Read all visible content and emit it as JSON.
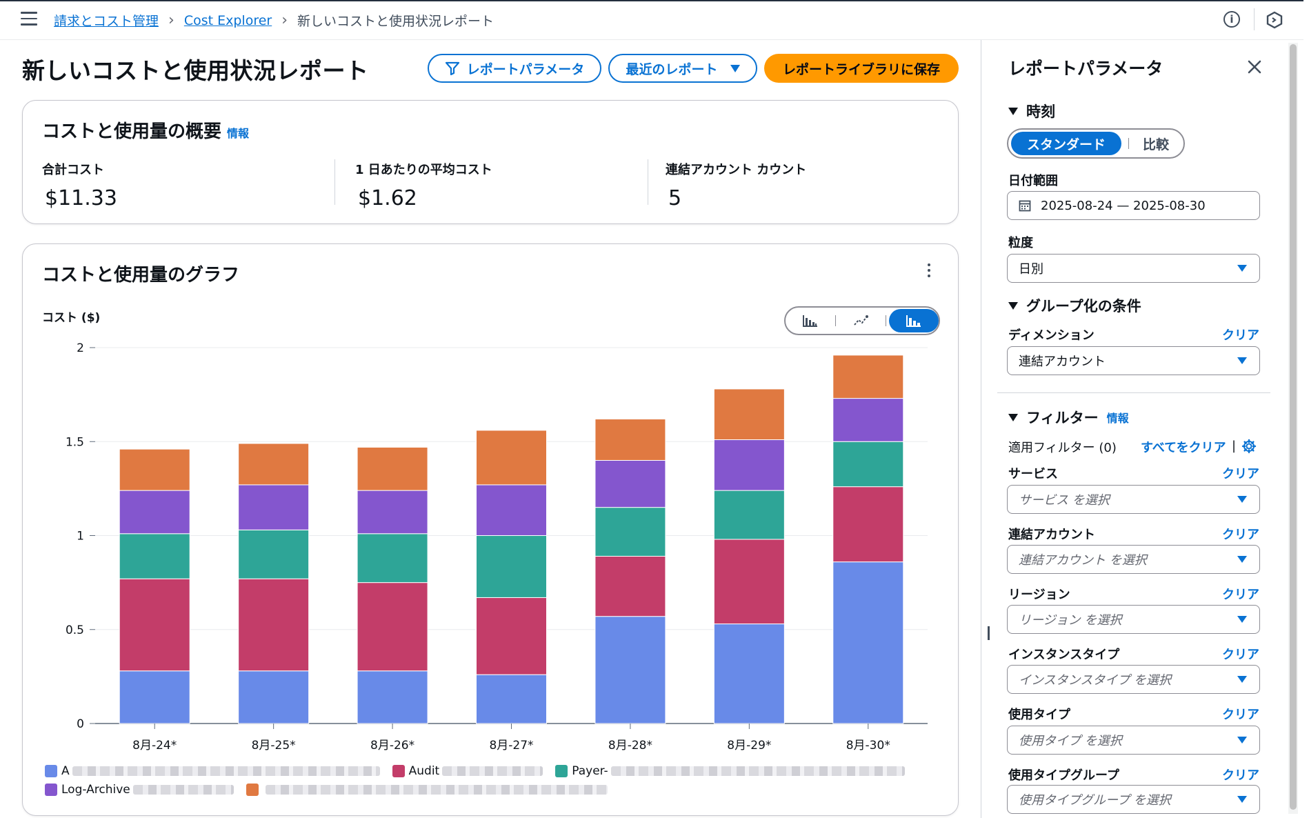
{
  "breadcrumb": {
    "items": [
      "請求とコスト管理",
      "Cost Explorer"
    ],
    "current": "新しいコストと使用状況レポート"
  },
  "header": {
    "title": "新しいコストと使用状況レポート",
    "btn_params": "レポートパラメータ",
    "btn_recent": "最近のレポート",
    "btn_save": "レポートライブラリに保存"
  },
  "summary": {
    "title": "コストと使用量の概要",
    "info": "情報",
    "total_label": "合計コスト",
    "total_value": "$11.33",
    "avg_label": "1 日あたりの平均コスト",
    "avg_value": "$1.62",
    "accounts_label": "連結アカウント カウント",
    "accounts_value": "5"
  },
  "graph": {
    "title": "コストと使用量のグラフ",
    "ylabel": "コスト ($)"
  },
  "chart_data": {
    "type": "bar",
    "stacked": true,
    "ylabel": "コスト ($)",
    "ylim": [
      0,
      2
    ],
    "yticks": [
      0,
      0.5,
      1,
      1.5,
      2
    ],
    "ytick_labels": [
      "0",
      "0.5",
      "1",
      "1.5",
      "2"
    ],
    "categories": [
      "8月-24*",
      "8月-25*",
      "8月-26*",
      "8月-27*",
      "8月-28*",
      "8月-29*",
      "8月-30*"
    ],
    "series": [
      {
        "name": "A",
        "color": "#688ae8",
        "values": [
          0.28,
          0.28,
          0.28,
          0.26,
          0.57,
          0.53,
          0.86
        ]
      },
      {
        "name": "Audit",
        "color": "#c33d69",
        "values": [
          0.49,
          0.49,
          0.47,
          0.41,
          0.32,
          0.45,
          0.4
        ]
      },
      {
        "name": "Payer-",
        "color": "#2ea597",
        "values": [
          0.24,
          0.26,
          0.26,
          0.33,
          0.26,
          0.26,
          0.24
        ]
      },
      {
        "name": "Log-Archive",
        "color": "#8456ce",
        "values": [
          0.23,
          0.24,
          0.23,
          0.27,
          0.25,
          0.27,
          0.23
        ]
      },
      {
        "name": "",
        "color": "#e07941",
        "values": [
          0.22,
          0.22,
          0.23,
          0.29,
          0.22,
          0.27,
          0.23
        ]
      }
    ],
    "legend_placement": "bottom"
  },
  "panel": {
    "title": "レポートパラメータ",
    "time_section": "時刻",
    "seg_standard": "スタンダード",
    "seg_compare": "比較",
    "date_label": "日付範囲",
    "date_value": "2025-08-24 — 2025-08-30",
    "granularity_label": "粒度",
    "granularity_value": "日別",
    "group_section": "グループ化の条件",
    "dimension_label": "ディメンション",
    "dimension_value": "連結アカウント",
    "clear": "クリア",
    "filter_section": "フィルター",
    "filter_info": "情報",
    "applied": "適用フィルター (0)",
    "clear_all": "すべてをクリア",
    "service_label": "サービス",
    "service_ph": "サービス を選択",
    "linked_label": "連結アカウント",
    "linked_ph": "連結アカウント を選択",
    "region_label": "リージョン",
    "region_ph": "リージョン を選択",
    "instance_label": "インスタンスタイプ",
    "instance_ph": "インスタンスタイプ を選択",
    "usage_label": "使用タイプ",
    "usage_ph": "使用タイプ を選択",
    "usage_group_label": "使用タイプグループ",
    "usage_group_ph": "使用タイプグループ を選択"
  }
}
